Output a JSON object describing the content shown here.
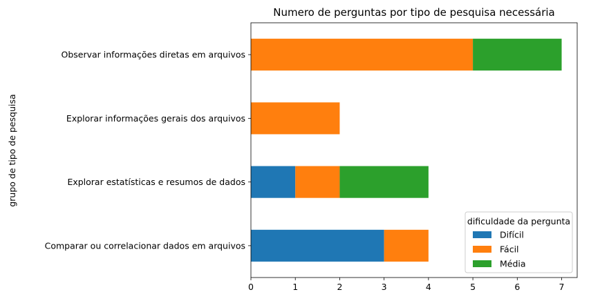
{
  "chart_data": {
    "type": "bar",
    "orientation": "horizontal",
    "stacked": true,
    "title": "Numero de perguntas por tipo de pesquisa necessária",
    "xlabel": "",
    "ylabel": "grupo de tipo de pesquisa",
    "categories": [
      "Comparar ou correlacionar dados em arquivos",
      "Explorar estatísticas e resumos de dados",
      "Explorar informações gerais dos arquivos",
      "Observar informações diretas em arquivos"
    ],
    "series": [
      {
        "name": "Difícil",
        "values": [
          3,
          1,
          0,
          0
        ],
        "color": "#1f77b4"
      },
      {
        "name": "Fácil",
        "values": [
          1,
          1,
          2,
          5
        ],
        "color": "#ff7f0e"
      },
      {
        "name": "Média",
        "values": [
          0,
          2,
          0,
          2
        ],
        "color": "#2ca02c"
      }
    ],
    "xlim": [
      0,
      7.35
    ],
    "xticks": [
      "0",
      "1",
      "2",
      "3",
      "4",
      "5",
      "6",
      "7"
    ],
    "grid": false,
    "legend": {
      "title": "dificuldade da pergunta",
      "position": "lower-right"
    }
  }
}
